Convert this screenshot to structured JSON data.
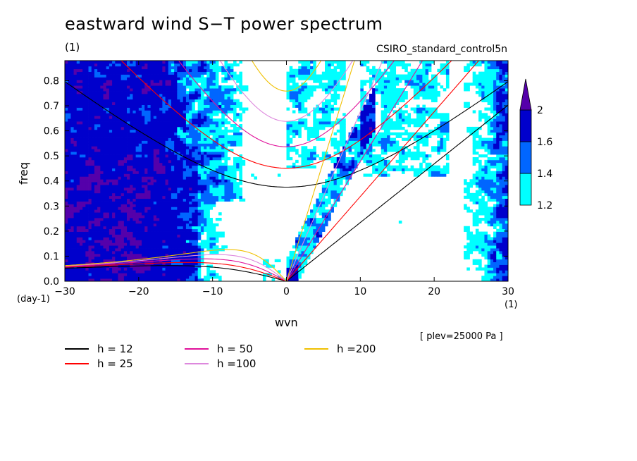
{
  "title": "eastward wind S−T power spectrum",
  "units": "(1)",
  "case_label": "CSIRO_standard_control5n",
  "plev_note": "[ plev=25000 Pa ]",
  "colors": {
    "level_1_2": "#00ffff",
    "level_1_4": "#0066ff",
    "level_1_6": "#0000cc",
    "level_2": "#5500aa",
    "h12": "#000000",
    "h25": "#ff0000",
    "h50": "#e0109a",
    "h100": "#dd88dd",
    "h200": "#f0c000"
  },
  "chart_data": {
    "type": "heatmap",
    "title": "eastward wind S−T power spectrum",
    "xlabel": "wvn",
    "xunit": "(1)",
    "ylabel": "freq",
    "yunit": "(day-1)",
    "xlim": [
      -30,
      30
    ],
    "ylim": [
      0,
      0.88
    ],
    "x_ticks": [
      -30,
      -20,
      -10,
      0,
      10,
      20,
      30
    ],
    "x_tick_labels": [
      "−30",
      "−20",
      "−10",
      "0",
      "10",
      "20",
      "30"
    ],
    "y_ticks": [
      0,
      0.1,
      0.2,
      0.3,
      0.4,
      0.5,
      0.6,
      0.7,
      0.8
    ],
    "y_tick_labels": [
      "0.0",
      "0.1",
      "0.2",
      "0.3",
      "0.4",
      "0.5",
      "0.6",
      "0.7",
      "0.8"
    ],
    "contour_levels": [
      1.2,
      1.4,
      1.6,
      2
    ],
    "colorbar_labels": [
      "1.2",
      "1.4",
      "1.6",
      "2"
    ],
    "dispersion_curves": [
      {
        "name": "h = 12",
        "h": 12
      },
      {
        "name": "h = 25",
        "h": 25
      },
      {
        "name": "h = 50",
        "h": 50
      },
      {
        "name": "h =100",
        "h": 100
      },
      {
        "name": "h =200",
        "h": 200
      }
    ],
    "legend_placement": "bottom"
  }
}
